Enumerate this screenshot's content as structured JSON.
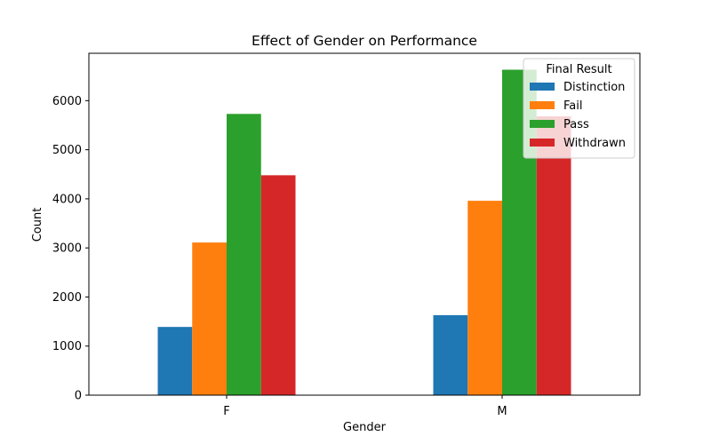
{
  "chart_data": {
    "type": "bar",
    "title": "Effect of Gender on Performance",
    "xlabel": "Gender",
    "ylabel": "Count",
    "categories": [
      "F",
      "M"
    ],
    "series": [
      {
        "name": "Distinction",
        "color": "#1f77b4",
        "values": [
          1390,
          1630
        ]
      },
      {
        "name": "Fail",
        "color": "#ff7f0e",
        "values": [
          3110,
          3960
        ]
      },
      {
        "name": "Pass",
        "color": "#2ca02c",
        "values": [
          5730,
          6630
        ]
      },
      {
        "name": "Withdrawn",
        "color": "#d62728",
        "values": [
          4480,
          5680
        ]
      }
    ],
    "ylim": [
      0,
      6965
    ],
    "yticks": [
      0,
      1000,
      2000,
      3000,
      4000,
      5000,
      6000
    ],
    "legend": {
      "title": "Final Result",
      "placement": "top-right"
    },
    "grid": false
  }
}
